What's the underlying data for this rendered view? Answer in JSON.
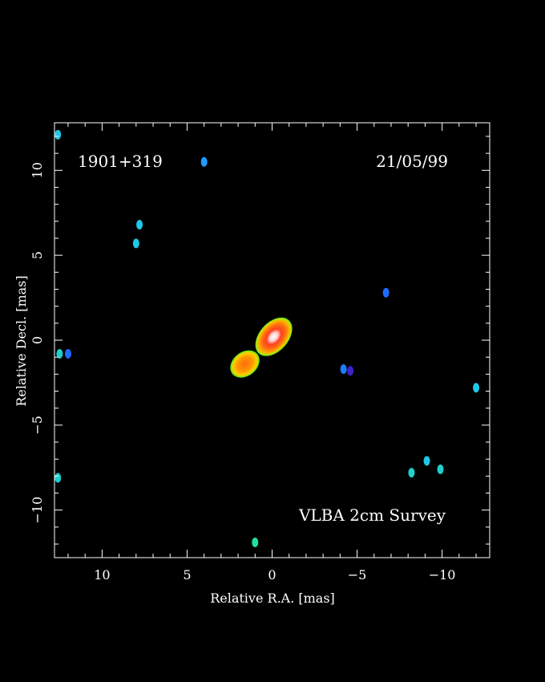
{
  "chart_data": {
    "type": "heatmap",
    "source_label": "1901+319",
    "date_label": "21/05/99",
    "survey_label": "VLBA 2cm Survey",
    "xlabel": "Relative R.A. [mas]",
    "ylabel": "Relative Decl. [mas]",
    "xlim": [
      12.8,
      -12.8
    ],
    "ylim": [
      -12.8,
      12.8
    ],
    "x_ticks": [
      {
        "value": 10,
        "label": "10"
      },
      {
        "value": 5,
        "label": "5"
      },
      {
        "value": 0,
        "label": "0"
      },
      {
        "value": -5,
        "label": "−5"
      },
      {
        "value": -10,
        "label": "−10"
      }
    ],
    "y_ticks": [
      {
        "value": 10,
        "label": "10"
      },
      {
        "value": 5,
        "label": "5"
      },
      {
        "value": 0,
        "label": "0"
      },
      {
        "value": -5,
        "label": "−5"
      },
      {
        "value": -10,
        "label": "−10"
      }
    ],
    "minor_tick_step": 1,
    "grid": false,
    "core": {
      "x": -0.1,
      "y": 0.2
    },
    "jet_extension": {
      "x": 1.6,
      "y": -1.4
    },
    "noise_blobs": [
      {
        "x": 12.6,
        "y": 12.1,
        "color": "#1ec8e8"
      },
      {
        "x": 4.0,
        "y": 10.5,
        "color": "#1e9cff"
      },
      {
        "x": 7.8,
        "y": 6.8,
        "color": "#1ec8e8"
      },
      {
        "x": 8.0,
        "y": 5.7,
        "color": "#1ec8e8"
      },
      {
        "x": 12.5,
        "y": -0.8,
        "color": "#1ecfcf"
      },
      {
        "x": 12.0,
        "y": -0.8,
        "color": "#1e6cff"
      },
      {
        "x": -6.7,
        "y": 2.8,
        "color": "#1e6cff"
      },
      {
        "x": -4.2,
        "y": -1.7,
        "color": "#1e7cff"
      },
      {
        "x": -4.6,
        "y": -1.8,
        "color": "#4020c8"
      },
      {
        "x": -12.0,
        "y": -2.8,
        "color": "#1ec8e8"
      },
      {
        "x": -9.1,
        "y": -7.1,
        "color": "#1ec8e8"
      },
      {
        "x": -8.2,
        "y": -7.8,
        "color": "#1ecfcf"
      },
      {
        "x": -9.9,
        "y": -7.6,
        "color": "#1ecfcf"
      },
      {
        "x": 12.6,
        "y": -8.1,
        "color": "#1ecfcf"
      },
      {
        "x": 1.0,
        "y": -11.9,
        "color": "#20e0a0"
      }
    ]
  }
}
